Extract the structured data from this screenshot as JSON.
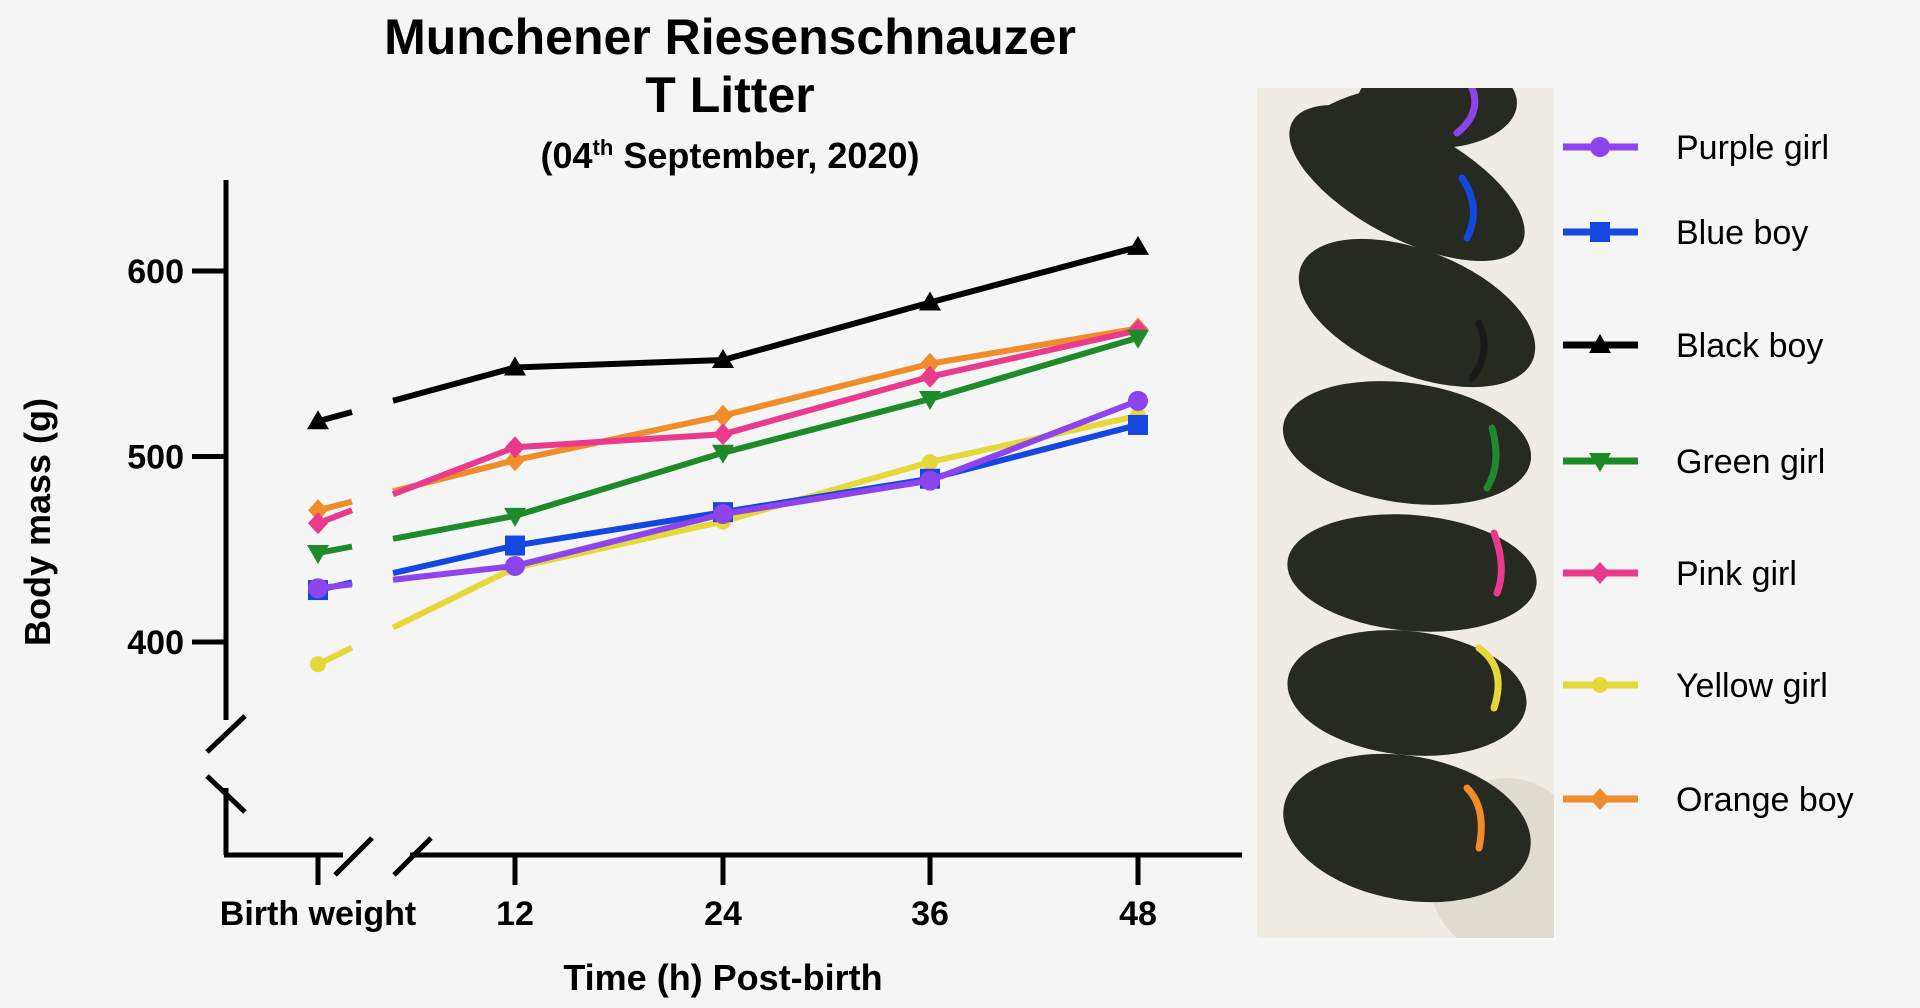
{
  "chart_data": {
    "type": "line",
    "title": "Munchener Riesenschnauzer",
    "subtitle": "T Litter",
    "date_prefix": "(04",
    "date_sup": "th",
    "date_suffix": " September, 2020)",
    "xlabel": "Time (h) Post-birth",
    "ylabel": "Body mass (g)",
    "x_categories": [
      "Birth weight",
      "12",
      "24",
      "36",
      "48"
    ],
    "y_ticks": [
      400,
      500,
      600
    ],
    "ylim": [
      370,
      650
    ],
    "axis_breaks": true,
    "legend_position": "right",
    "series": [
      {
        "name": "Purple girl",
        "color": "#8e44ec",
        "marker": "circle",
        "values": [
          429,
          441,
          469,
          487,
          530
        ]
      },
      {
        "name": "Blue boy",
        "color": "#1446e0",
        "marker": "square",
        "values": [
          428,
          452,
          470,
          488,
          517
        ]
      },
      {
        "name": "Black boy",
        "color": "#000000",
        "marker": "triangle-up",
        "values": [
          519,
          548,
          552,
          583,
          613
        ]
      },
      {
        "name": "Green girl",
        "color": "#1e8a2a",
        "marker": "triangle-down",
        "values": [
          448,
          468,
          502,
          531,
          564
        ]
      },
      {
        "name": "Pink girl",
        "color": "#e93a8c",
        "marker": "diamond",
        "values": [
          464,
          505,
          512,
          543,
          568
        ]
      },
      {
        "name": "Yellow girl",
        "color": "#e5d83a",
        "marker": "circle-small",
        "values": [
          388,
          440,
          465,
          497,
          522
        ]
      },
      {
        "name": "Orange boy",
        "color": "#f08c2a",
        "marker": "diamond",
        "values": [
          471,
          498,
          522,
          550,
          569
        ]
      }
    ]
  }
}
